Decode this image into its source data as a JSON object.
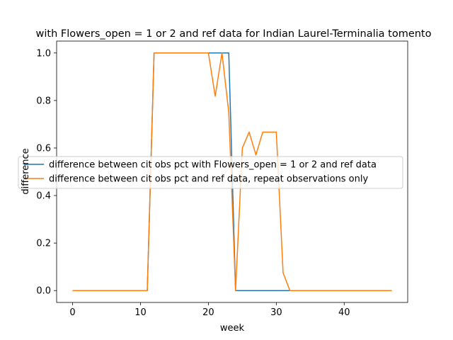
{
  "chart_data": {
    "type": "line",
    "title": "with Flowers_open = 1 or 2 and ref data for Indian Laurel-Terminalia tomento",
    "xlabel": "week",
    "ylabel": "difference",
    "xlim": [
      -2.35,
      49.35
    ],
    "ylim": [
      -0.05,
      1.05
    ],
    "xticks": [
      0,
      10,
      20,
      30,
      40
    ],
    "yticks": [
      0.0,
      0.2,
      0.4,
      0.6,
      0.8,
      1.0
    ],
    "xtick_labels": [
      "0",
      "10",
      "20",
      "30",
      "40"
    ],
    "ytick_labels": [
      "0.0",
      "0.2",
      "0.4",
      "0.6",
      "0.8",
      "1.0"
    ],
    "grid": false,
    "legend_position": "center-left",
    "series": [
      {
        "name": "difference between cit obs pct with Flowers_open = 1 or 2 and ref data",
        "color": "#1f77b4",
        "x": [
          0,
          1,
          2,
          3,
          4,
          5,
          6,
          7,
          8,
          9,
          10,
          11,
          12,
          13,
          14,
          15,
          16,
          17,
          18,
          19,
          20,
          21,
          22,
          23,
          24,
          25,
          26,
          27,
          28,
          29,
          30,
          31,
          32,
          33,
          34,
          35,
          36,
          37,
          38,
          39,
          40,
          41,
          42,
          43,
          44,
          45,
          46,
          47
        ],
        "y": [
          0,
          0,
          0,
          0,
          0,
          0,
          0,
          0,
          0,
          0,
          0,
          0,
          1,
          1,
          1,
          1,
          1,
          1,
          1,
          1,
          1,
          1,
          1,
          1,
          0,
          0,
          0,
          0,
          0,
          0,
          0,
          0,
          0,
          0,
          0,
          0,
          0,
          0,
          0,
          0,
          0,
          0,
          0,
          0,
          0,
          0,
          0,
          0
        ]
      },
      {
        "name": "difference between cit obs pct and ref data, repeat observations only",
        "color": "#ff7f0e",
        "x": [
          0,
          1,
          2,
          3,
          4,
          5,
          6,
          7,
          8,
          9,
          10,
          11,
          12,
          13,
          14,
          15,
          16,
          17,
          18,
          19,
          20,
          21,
          22,
          23,
          24,
          25,
          26,
          27,
          28,
          29,
          30,
          31,
          32,
          33,
          34,
          35,
          36,
          37,
          38,
          39,
          40,
          41,
          42,
          43,
          44,
          45,
          46,
          47
        ],
        "y": [
          0,
          0,
          0,
          0,
          0,
          0,
          0,
          0,
          0,
          0,
          0,
          0,
          1,
          1,
          1,
          1,
          1,
          1,
          1,
          1,
          1,
          0.818,
          1,
          0.75,
          0,
          0.6,
          0.667,
          0.571,
          0.667,
          0.667,
          0.667,
          0.075,
          0,
          0,
          0,
          0,
          0,
          0,
          0,
          0,
          0,
          0,
          0,
          0,
          0,
          0,
          0,
          0
        ]
      }
    ]
  }
}
